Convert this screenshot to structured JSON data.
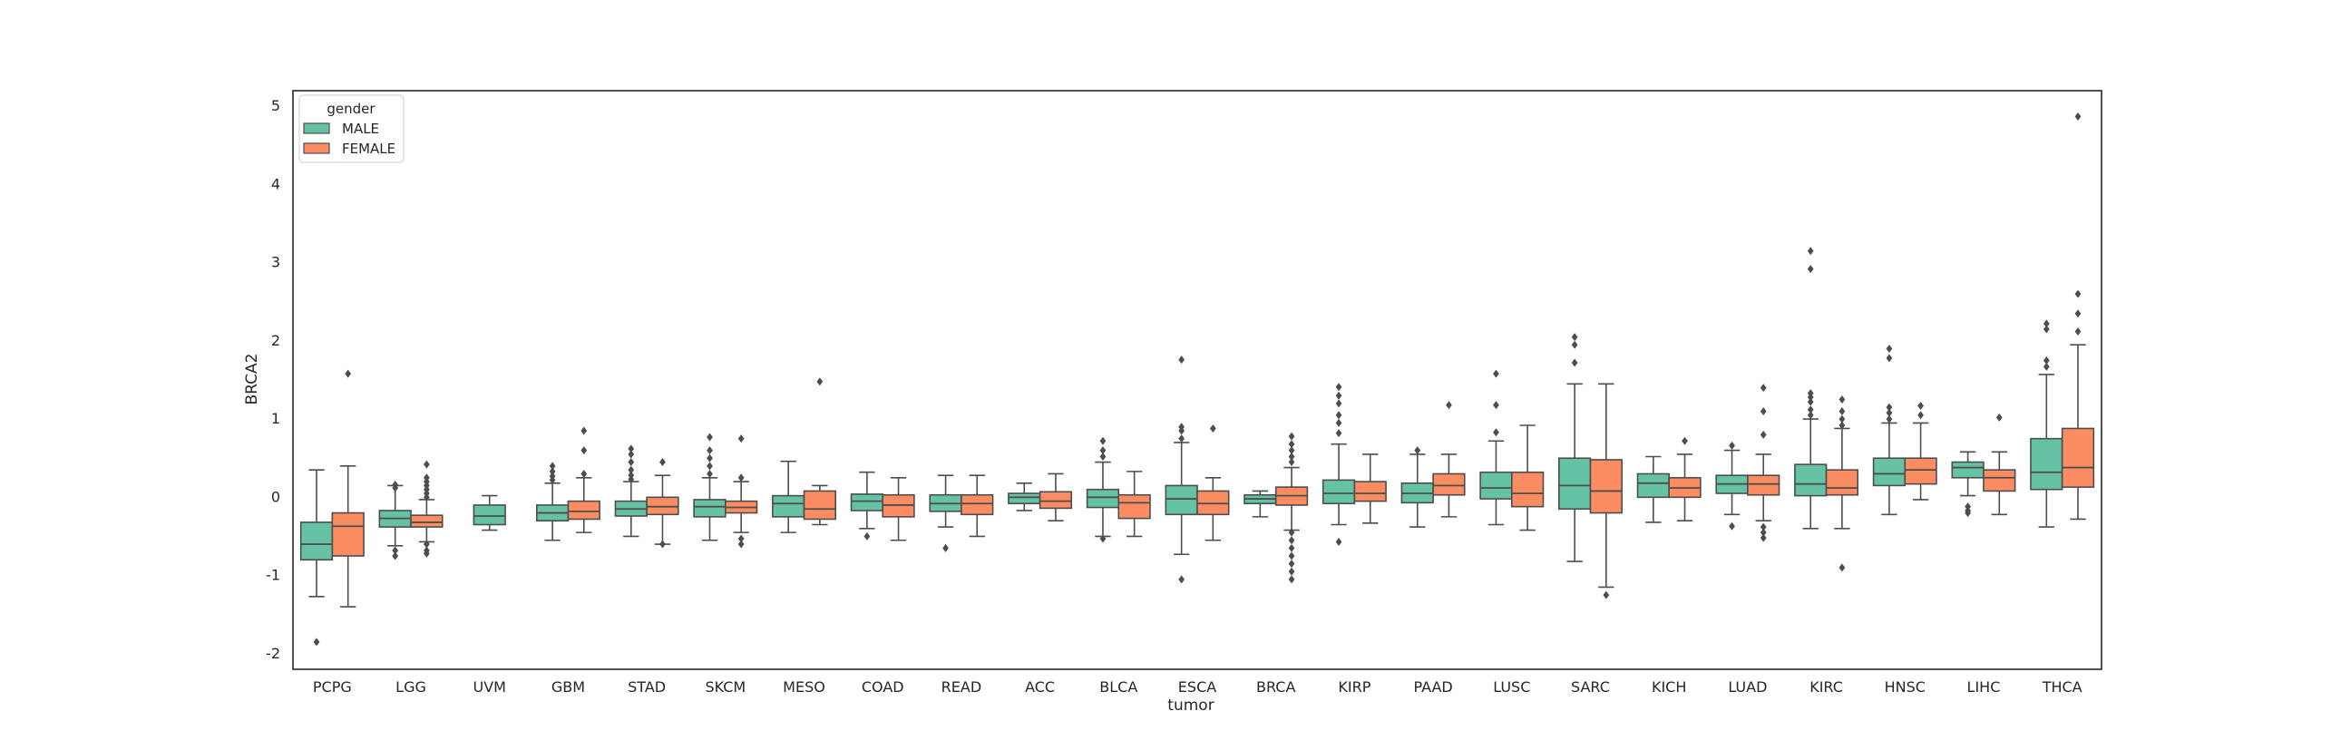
{
  "chart_data": {
    "type": "box",
    "xlabel": "tumor",
    "ylabel": "BRCA2",
    "ylim": [
      -2.2,
      5.2
    ],
    "yticks": [
      -2,
      -1,
      0,
      1,
      2,
      3,
      4,
      5
    ],
    "grid": false,
    "legend": {
      "title": "gender",
      "placement": "top-left",
      "entries": [
        "MALE",
        "FEMALE"
      ]
    },
    "colors": {
      "MALE": "#66c2a5",
      "FEMALE": "#fc8d62",
      "line": "#4d4d4d"
    },
    "categories": [
      "PCPG",
      "LGG",
      "UVM",
      "GBM",
      "STAD",
      "SKCM",
      "MESO",
      "COAD",
      "READ",
      "ACC",
      "BLCA",
      "ESCA",
      "BRCA",
      "KIRP",
      "PAAD",
      "LUSC",
      "SARC",
      "KICH",
      "LUAD",
      "KIRC",
      "HNSC",
      "LIHC",
      "THCA"
    ],
    "series": [
      {
        "name": "MALE",
        "boxes": [
          {
            "whislo": -1.27,
            "q1": -0.8,
            "med": -0.6,
            "q3": -0.32,
            "whishi": 0.35,
            "fliers": [
              -1.85
            ]
          },
          {
            "whislo": -0.62,
            "q1": -0.38,
            "med": -0.27,
            "q3": -0.17,
            "whishi": 0.15,
            "fliers": [
              -0.68,
              -0.75,
              0.12,
              0.16
            ]
          },
          {
            "whislo": -0.42,
            "q1": -0.35,
            "med": -0.24,
            "q3": -0.1,
            "whishi": 0.02,
            "fliers": []
          },
          {
            "whislo": -0.55,
            "q1": -0.3,
            "med": -0.2,
            "q3": -0.1,
            "whishi": 0.18,
            "fliers": [
              0.22,
              0.27,
              0.33,
              0.4
            ]
          },
          {
            "whislo": -0.5,
            "q1": -0.24,
            "med": -0.15,
            "q3": -0.05,
            "whishi": 0.2,
            "fliers": [
              0.23,
              0.28,
              0.35,
              0.45,
              0.55,
              0.62
            ]
          },
          {
            "whislo": -0.55,
            "q1": -0.25,
            "med": -0.12,
            "q3": -0.03,
            "whishi": 0.25,
            "fliers": [
              0.3,
              0.4,
              0.5,
              0.6,
              0.77
            ]
          },
          {
            "whislo": -0.45,
            "q1": -0.25,
            "med": -0.08,
            "q3": 0.02,
            "whishi": 0.46,
            "fliers": []
          },
          {
            "whislo": -0.4,
            "q1": -0.17,
            "med": -0.05,
            "q3": 0.04,
            "whishi": 0.32,
            "fliers": [
              -0.5
            ]
          },
          {
            "whislo": -0.38,
            "q1": -0.18,
            "med": -0.08,
            "q3": 0.03,
            "whishi": 0.28,
            "fliers": [
              -0.65
            ]
          },
          {
            "whislo": -0.17,
            "q1": -0.08,
            "med": 0.0,
            "q3": 0.05,
            "whishi": 0.18,
            "fliers": []
          },
          {
            "whislo": -0.5,
            "q1": -0.13,
            "med": 0.0,
            "q3": 0.1,
            "whishi": 0.45,
            "fliers": [
              -0.53,
              0.52,
              0.6,
              0.72
            ]
          },
          {
            "whislo": -0.73,
            "q1": -0.22,
            "med": -0.02,
            "q3": 0.15,
            "whishi": 0.7,
            "fliers": [
              -1.05,
              0.75,
              0.85,
              0.9,
              1.76
            ]
          },
          {
            "whislo": -0.25,
            "q1": -0.08,
            "med": -0.02,
            "q3": 0.03,
            "whishi": 0.08,
            "fliers": []
          },
          {
            "whislo": -0.35,
            "q1": -0.08,
            "med": 0.05,
            "q3": 0.22,
            "whishi": 0.68,
            "fliers": [
              -0.57,
              0.82,
              0.95,
              1.05,
              1.2,
              1.3,
              1.41
            ]
          },
          {
            "whislo": -0.38,
            "q1": -0.07,
            "med": 0.05,
            "q3": 0.18,
            "whishi": 0.55,
            "fliers": [
              0.6
            ]
          },
          {
            "whislo": -0.35,
            "q1": -0.02,
            "med": 0.12,
            "q3": 0.32,
            "whishi": 0.72,
            "fliers": [
              0.83,
              1.18,
              1.58
            ]
          },
          {
            "whislo": -0.82,
            "q1": -0.15,
            "med": 0.15,
            "q3": 0.5,
            "whishi": 1.45,
            "fliers": [
              1.72,
              1.95,
              2.05
            ]
          },
          {
            "whislo": -0.32,
            "q1": 0.0,
            "med": 0.18,
            "q3": 0.3,
            "whishi": 0.52,
            "fliers": []
          },
          {
            "whislo": -0.22,
            "q1": 0.05,
            "med": 0.17,
            "q3": 0.28,
            "whishi": 0.6,
            "fliers": [
              -0.37,
              0.66
            ]
          },
          {
            "whislo": -0.4,
            "q1": 0.02,
            "med": 0.17,
            "q3": 0.42,
            "whishi": 1.0,
            "fliers": [
              1.05,
              1.12,
              1.22,
              1.28,
              1.33,
              2.92,
              3.15
            ]
          },
          {
            "whislo": -0.22,
            "q1": 0.15,
            "med": 0.3,
            "q3": 0.5,
            "whishi": 0.95,
            "fliers": [
              1.0,
              1.08,
              1.15,
              1.78,
              1.9
            ]
          },
          {
            "whislo": 0.02,
            "q1": 0.25,
            "med": 0.38,
            "q3": 0.45,
            "whishi": 0.58,
            "fliers": [
              -0.12,
              -0.17,
              -0.2
            ]
          },
          {
            "whislo": -0.38,
            "q1": 0.1,
            "med": 0.32,
            "q3": 0.75,
            "whishi": 1.57,
            "fliers": [
              1.67,
              1.75,
              2.15,
              2.22
            ]
          }
        ]
      },
      {
        "name": "FEMALE",
        "boxes": [
          {
            "whislo": -1.4,
            "q1": -0.75,
            "med": -0.37,
            "q3": -0.2,
            "whishi": 0.4,
            "fliers": [
              1.58
            ]
          },
          {
            "whislo": -0.57,
            "q1": -0.38,
            "med": -0.32,
            "q3": -0.23,
            "whishi": -0.03,
            "fliers": [
              -0.6,
              -0.68,
              -0.72,
              0.0,
              0.05,
              0.1,
              0.15,
              0.2,
              0.25,
              0.42
            ]
          },
          null,
          {
            "whislo": -0.45,
            "q1": -0.28,
            "med": -0.18,
            "q3": -0.05,
            "whishi": 0.25,
            "fliers": [
              0.3,
              0.6,
              0.85
            ]
          },
          {
            "whislo": -0.6,
            "q1": -0.22,
            "med": -0.12,
            "q3": 0.0,
            "whishi": 0.28,
            "fliers": [
              0.45,
              -0.6
            ]
          },
          {
            "whislo": -0.45,
            "q1": -0.2,
            "med": -0.13,
            "q3": -0.05,
            "whishi": 0.2,
            "fliers": [
              -0.53,
              -0.6,
              0.25,
              0.75
            ]
          },
          {
            "whislo": -0.35,
            "q1": -0.28,
            "med": -0.15,
            "q3": 0.08,
            "whishi": 0.15,
            "fliers": [
              1.48
            ]
          },
          {
            "whislo": -0.55,
            "q1": -0.25,
            "med": -0.1,
            "q3": 0.03,
            "whishi": 0.25,
            "fliers": []
          },
          {
            "whislo": -0.5,
            "q1": -0.22,
            "med": -0.08,
            "q3": 0.03,
            "whishi": 0.28,
            "fliers": []
          },
          {
            "whislo": -0.3,
            "q1": -0.14,
            "med": -0.05,
            "q3": 0.07,
            "whishi": 0.3,
            "fliers": []
          },
          {
            "whislo": -0.5,
            "q1": -0.27,
            "med": -0.07,
            "q3": 0.03,
            "whishi": 0.33,
            "fliers": []
          },
          {
            "whislo": -0.55,
            "q1": -0.22,
            "med": -0.08,
            "q3": 0.08,
            "whishi": 0.25,
            "fliers": [
              0.88
            ]
          },
          {
            "whislo": -0.42,
            "q1": -0.1,
            "med": 0.02,
            "q3": 0.13,
            "whishi": 0.38,
            "fliers": [
              -0.45,
              -0.55,
              -0.65,
              -0.75,
              -0.85,
              -0.95,
              -1.05,
              0.45,
              0.52,
              0.6,
              0.68,
              0.78
            ]
          },
          {
            "whislo": -0.33,
            "q1": -0.05,
            "med": 0.05,
            "q3": 0.2,
            "whishi": 0.55,
            "fliers": []
          },
          {
            "whislo": -0.25,
            "q1": 0.03,
            "med": 0.15,
            "q3": 0.3,
            "whishi": 0.55,
            "fliers": [
              1.18
            ]
          },
          {
            "whislo": -0.42,
            "q1": -0.12,
            "med": 0.05,
            "q3": 0.32,
            "whishi": 0.92,
            "fliers": []
          },
          {
            "whislo": -1.15,
            "q1": -0.2,
            "med": 0.08,
            "q3": 0.48,
            "whishi": 1.45,
            "fliers": [
              -1.25
            ]
          },
          {
            "whislo": -0.3,
            "q1": 0.0,
            "med": 0.12,
            "q3": 0.25,
            "whishi": 0.55,
            "fliers": [
              0.72
            ]
          },
          {
            "whislo": -0.3,
            "q1": 0.03,
            "med": 0.17,
            "q3": 0.28,
            "whishi": 0.55,
            "fliers": [
              -0.38,
              -0.45,
              -0.52,
              0.8,
              1.1,
              1.4
            ]
          },
          {
            "whislo": -0.4,
            "q1": 0.03,
            "med": 0.12,
            "q3": 0.35,
            "whishi": 0.88,
            "fliers": [
              -0.9,
              0.92,
              1.0,
              1.1,
              1.25
            ]
          },
          {
            "whislo": -0.03,
            "q1": 0.17,
            "med": 0.35,
            "q3": 0.5,
            "whishi": 0.95,
            "fliers": [
              1.05,
              1.17
            ]
          },
          {
            "whislo": -0.22,
            "q1": 0.08,
            "med": 0.25,
            "q3": 0.35,
            "whishi": 0.58,
            "fliers": [
              1.02
            ]
          },
          {
            "whislo": -0.28,
            "q1": 0.13,
            "med": 0.38,
            "q3": 0.88,
            "whishi": 1.95,
            "fliers": [
              2.12,
              2.35,
              2.6,
              4.87
            ]
          }
        ]
      }
    ]
  }
}
